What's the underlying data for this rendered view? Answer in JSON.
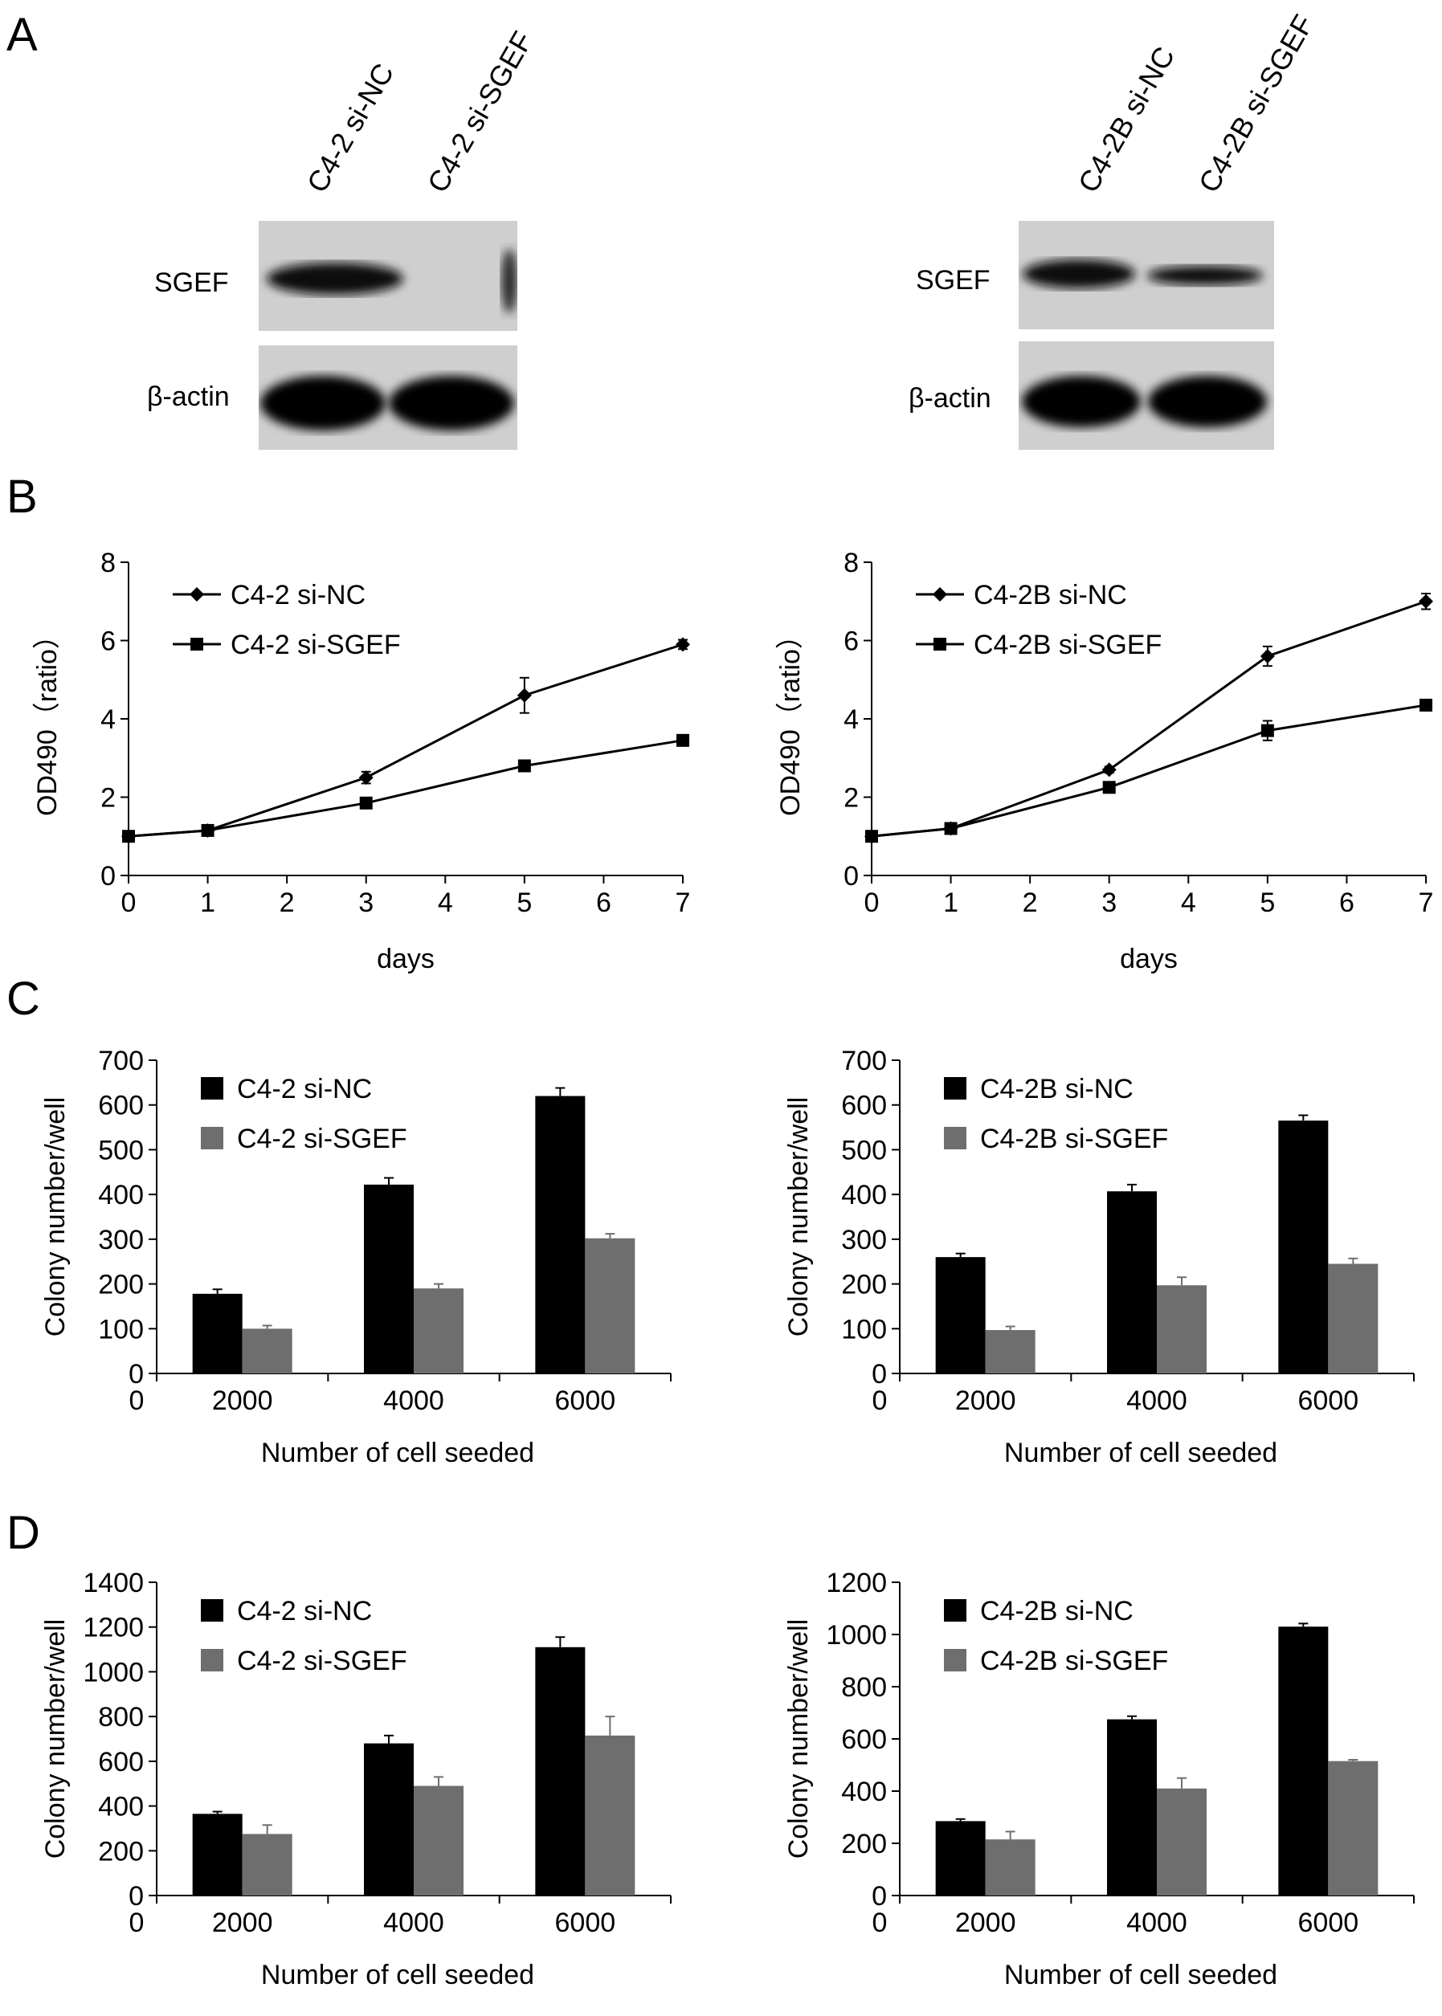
{
  "panels": {
    "A": "A",
    "B": "B",
    "C": "C",
    "D": "D"
  },
  "blots": {
    "left": {
      "lanes": [
        "C4-2 si-NC",
        "C4-2 si-SGEF"
      ],
      "bands": [
        "SGEF",
        "β-actin"
      ]
    },
    "right": {
      "lanes": [
        "C4-2B si-NC",
        "C4-2B si-SGEF"
      ],
      "bands": [
        "SGEF",
        "β-actin"
      ]
    }
  },
  "chart_data": [
    {
      "id": "B-left",
      "type": "line",
      "xlabel": "days",
      "ylabel": "OD490（ratio）",
      "x": [
        0,
        1,
        3,
        5,
        7
      ],
      "xlim": [
        0,
        7
      ],
      "xticks": [
        0,
        1,
        2,
        3,
        4,
        5,
        6,
        7
      ],
      "ylim": [
        0,
        8
      ],
      "yticks": [
        0,
        2,
        4,
        6,
        8
      ],
      "legend": "top-left",
      "series": [
        {
          "name": "C4-2 si-NC",
          "marker": "diamond",
          "values": [
            1.0,
            1.15,
            2.5,
            4.6,
            5.9
          ],
          "errors": [
            0.05,
            0.08,
            0.15,
            0.45,
            0.12
          ]
        },
        {
          "name": "C4-2 si-SGEF",
          "marker": "square",
          "values": [
            1.0,
            1.15,
            1.85,
            2.8,
            3.45
          ],
          "errors": [
            0.05,
            0.05,
            0.08,
            0.08,
            0.1
          ]
        }
      ]
    },
    {
      "id": "B-right",
      "type": "line",
      "xlabel": "days",
      "ylabel": "OD490（ratio）",
      "x": [
        0,
        1,
        3,
        5,
        7
      ],
      "xlim": [
        0,
        7
      ],
      "xticks": [
        0,
        1,
        2,
        3,
        4,
        5,
        6,
        7
      ],
      "ylim": [
        0,
        8
      ],
      "yticks": [
        0,
        2,
        4,
        6,
        8
      ],
      "legend": "top-left",
      "series": [
        {
          "name": "C4-2B si-NC",
          "marker": "diamond",
          "values": [
            1.0,
            1.2,
            2.7,
            5.6,
            7.0
          ],
          "errors": [
            0.05,
            0.05,
            0.08,
            0.25,
            0.2
          ]
        },
        {
          "name": "C4-2B si-SGEF",
          "marker": "square",
          "values": [
            1.0,
            1.2,
            2.25,
            3.7,
            4.35
          ],
          "errors": [
            0.05,
            0.05,
            0.08,
            0.25,
            0.08
          ]
        }
      ]
    },
    {
      "id": "C-left",
      "type": "bar",
      "xlabel": "Number of cell seeded",
      "ylabel": "Colony number/well",
      "origin_label": "0",
      "categories": [
        "2000",
        "4000",
        "6000"
      ],
      "ylim": [
        0,
        700
      ],
      "yticks": [
        0,
        100,
        200,
        300,
        400,
        500,
        600,
        700
      ],
      "legend": "top-left",
      "series": [
        {
          "name": "C4-2 si-NC",
          "color": "#000000",
          "values": [
            178,
            422,
            620
          ],
          "errors": [
            10,
            15,
            18
          ]
        },
        {
          "name": "C4-2 si-SGEF",
          "color": "#6e6e6e",
          "values": [
            100,
            190,
            302
          ],
          "errors": [
            7,
            10,
            10
          ]
        }
      ]
    },
    {
      "id": "C-right",
      "type": "bar",
      "xlabel": "Number of cell seeded",
      "ylabel": "Colony number/well",
      "origin_label": "0",
      "categories": [
        "2000",
        "4000",
        "6000"
      ],
      "ylim": [
        0,
        700
      ],
      "yticks": [
        0,
        100,
        200,
        300,
        400,
        500,
        600,
        700
      ],
      "legend": "top-left",
      "series": [
        {
          "name": "C4-2B si-NC",
          "color": "#000000",
          "values": [
            260,
            407,
            565
          ],
          "errors": [
            8,
            15,
            12
          ]
        },
        {
          "name": "C4-2B si-SGEF",
          "color": "#6e6e6e",
          "values": [
            97,
            197,
            245
          ],
          "errors": [
            8,
            18,
            12
          ]
        }
      ]
    },
    {
      "id": "D-left",
      "type": "bar",
      "xlabel": "Number of cell seeded",
      "ylabel": "Colony number/well",
      "origin_label": "0",
      "categories": [
        "2000",
        "4000",
        "6000"
      ],
      "ylim": [
        0,
        1400
      ],
      "yticks": [
        0,
        200,
        400,
        600,
        800,
        1000,
        1200,
        1400
      ],
      "legend": "top-left",
      "series": [
        {
          "name": "C4-2 si-NC",
          "color": "#000000",
          "values": [
            365,
            680,
            1110
          ],
          "errors": [
            10,
            35,
            45
          ]
        },
        {
          "name": "C4-2 si-SGEF",
          "color": "#6e6e6e",
          "values": [
            275,
            490,
            715
          ],
          "errors": [
            40,
            40,
            85
          ]
        }
      ]
    },
    {
      "id": "D-right",
      "type": "bar",
      "xlabel": "Number of cell seeded",
      "ylabel": "Colony number/well",
      "origin_label": "0",
      "categories": [
        "2000",
        "4000",
        "6000"
      ],
      "ylim": [
        0,
        1200
      ],
      "yticks": [
        0,
        200,
        400,
        600,
        800,
        1000,
        1200
      ],
      "legend": "top-left",
      "series": [
        {
          "name": "C4-2B si-NC",
          "color": "#000000",
          "values": [
            285,
            675,
            1030
          ],
          "errors": [
            8,
            12,
            12
          ]
        },
        {
          "name": "C4-2B si-SGEF",
          "color": "#6e6e6e",
          "values": [
            215,
            410,
            515
          ],
          "errors": [
            30,
            40,
            5
          ]
        }
      ]
    }
  ]
}
